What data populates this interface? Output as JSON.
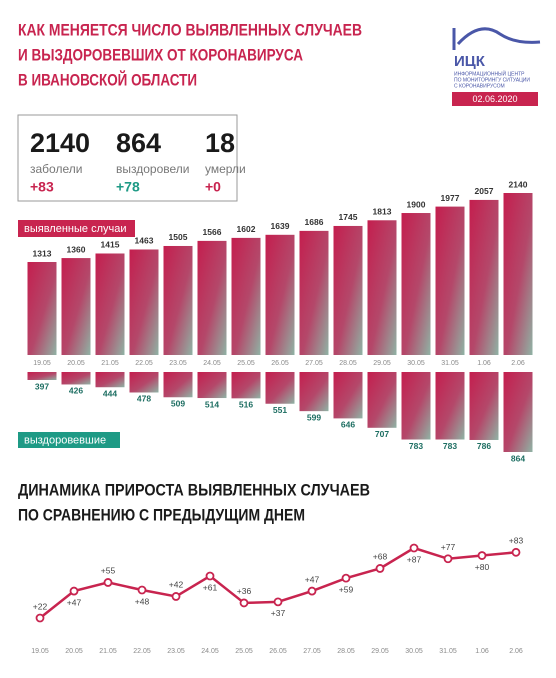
{
  "header": {
    "title": [
      "КАК МЕНЯЕТСЯ ЧИСЛО ВЫЯВЛЕННЫХ СЛУЧАЕВ",
      "И ВЫЗДОРОВЕВШИХ ОТ КОРОНАВИРУСА",
      "В ИВАНОВСКОЙ ОБЛАСТИ"
    ],
    "logo": "ИЦК",
    "logo_text": [
      "ИНФОРМАЦИОННЫЙ ЦЕНТР",
      "ПО МОНИТОРИНГУ СИТУАЦИИ",
      "С КОРОНАВИРУСОМ"
    ],
    "date": "02.06.2020"
  },
  "stats": [
    {
      "value": 2140,
      "label": "заболели",
      "change": "+83"
    },
    {
      "value": 864,
      "label": "выздоровели",
      "change": "+78"
    },
    {
      "value": 18,
      "label": "умерли",
      "change": "+0"
    }
  ],
  "chart_data": [
    {
      "type": "bar",
      "title": "выявленные случаи",
      "orientation": "up",
      "color": "#c8244f",
      "categories": [
        "19.05",
        "20.05",
        "21.05",
        "22.05",
        "23.05",
        "24.05",
        "25.05",
        "26.05",
        "27.05",
        "28.05",
        "29.05",
        "30.05",
        "31.05",
        "1.06",
        "2.06"
      ],
      "values": [
        1313,
        1360,
        1415,
        1463,
        1505,
        1566,
        1602,
        1639,
        1686,
        1745,
        1813,
        1900,
        1977,
        2057,
        2140
      ]
    },
    {
      "type": "bar",
      "title": "выздоровевшие",
      "orientation": "down",
      "color": "#1e9a85",
      "values": [
        397,
        426,
        444,
        478,
        509,
        514,
        516,
        551,
        599,
        646,
        707,
        783,
        783,
        786,
        864
      ]
    },
    {
      "type": "line",
      "title": [
        "ДИНАМИКА ПРИРОСТА ВЫЯВЛЕННЫХ СЛУЧАЕВ",
        "ПО СРАВНЕНИЮ С ПРЕДЫДУЩИМ ДНЕМ"
      ],
      "color": "#c8244f",
      "categories": [
        "19.05",
        "20.05",
        "21.05",
        "22.05",
        "23.05",
        "24.05",
        "25.05",
        "26.05",
        "27.05",
        "28.05",
        "29.05",
        "30.05",
        "31.05",
        "1.06",
        "2.06"
      ],
      "values": [
        22,
        47,
        55,
        48,
        42,
        61,
        36,
        37,
        47,
        59,
        68,
        87,
        77,
        80,
        83
      ],
      "value_labels": [
        "+22",
        "+47",
        "+55",
        "+48",
        "+42",
        "+61",
        "+36",
        "+37",
        "+47",
        "+59",
        "+68",
        "+87",
        "+77",
        "+80",
        "+83"
      ]
    }
  ]
}
